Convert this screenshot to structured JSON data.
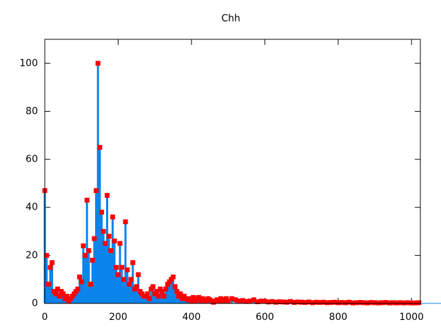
{
  "chart_data": {
    "type": "impulse",
    "title": "Chh",
    "xlim": [
      0,
      1024
    ],
    "ylim": [
      0,
      110
    ],
    "xticks": [
      0,
      200,
      400,
      600,
      800,
      1000
    ],
    "yticks": [
      0,
      20,
      40,
      60,
      80,
      100
    ],
    "color": "#0a84ea",
    "point_color": "#ff0000",
    "x": [
      0,
      5,
      10,
      15,
      20,
      25,
      30,
      35,
      40,
      45,
      50,
      55,
      60,
      65,
      70,
      75,
      80,
      85,
      90,
      95,
      100,
      105,
      110,
      115,
      120,
      125,
      130,
      135,
      140,
      145,
      150,
      155,
      160,
      165,
      170,
      175,
      180,
      185,
      190,
      195,
      200,
      205,
      210,
      215,
      220,
      225,
      230,
      235,
      240,
      245,
      250,
      255,
      260,
      265,
      270,
      275,
      280,
      285,
      290,
      295,
      300,
      305,
      310,
      315,
      320,
      325,
      330,
      335,
      340,
      345,
      350,
      355,
      360,
      365,
      370,
      375,
      380,
      385,
      390,
      395,
      400,
      405,
      410,
      415,
      420,
      425,
      430,
      435,
      440,
      445,
      450,
      455,
      460,
      465,
      470,
      475,
      480,
      485,
      490,
      495,
      500,
      510,
      520,
      530,
      540,
      550,
      560,
      570,
      580,
      590,
      600,
      610,
      620,
      630,
      640,
      650,
      660,
      670,
      680,
      690,
      700,
      710,
      720,
      730,
      740,
      750,
      760,
      770,
      780,
      790,
      800,
      810,
      820,
      830,
      840,
      850,
      860,
      870,
      880,
      890,
      900,
      910,
      920,
      930,
      940,
      950,
      960,
      970,
      980,
      990,
      1000,
      1010,
      1020
    ],
    "values": [
      47,
      20,
      8,
      15,
      17,
      5,
      4,
      6,
      3,
      5,
      4,
      2,
      3,
      1,
      2,
      3,
      4,
      5,
      6,
      11,
      9,
      24,
      20,
      43,
      22,
      8,
      18,
      27,
      47,
      100,
      65,
      38,
      30,
      25,
      45,
      28,
      22,
      36,
      26,
      15,
      12,
      25,
      15,
      10,
      34,
      14,
      8,
      10,
      17,
      6,
      7,
      12,
      5,
      4,
      3,
      3,
      4,
      2,
      6,
      7,
      4,
      5,
      3,
      6,
      5,
      3,
      6,
      8,
      9,
      10,
      11,
      7,
      5,
      3,
      4,
      2,
      3,
      2,
      1.5,
      2,
      1,
      2.5,
      1,
      2,
      2.5,
      1,
      2,
      1.5,
      1,
      2,
      1.5,
      1,
      0.5,
      1,
      1.5,
      1,
      2,
      1,
      1.5,
      2,
      1,
      2,
      1.5,
      1,
      1.2,
      0.8,
      1,
      1.5,
      0.7,
      1,
      0.9,
      0.6,
      0.8,
      0.5,
      0.7,
      0.6,
      0.5,
      0.8,
      0.4,
      0.6,
      0.5,
      0.4,
      0.6,
      0.3,
      0.5,
      0.4,
      0.5,
      0.3,
      0.4,
      0.5,
      0.3,
      0.4,
      0.3,
      0.5,
      0.2,
      0.3,
      0.4,
      0.3,
      0.2,
      0.4,
      0.3,
      0.2,
      0.3,
      0.4,
      0.2,
      0.3,
      0.2,
      0.3,
      0.2,
      0.3,
      0.2,
      0.2,
      0.3
    ]
  }
}
